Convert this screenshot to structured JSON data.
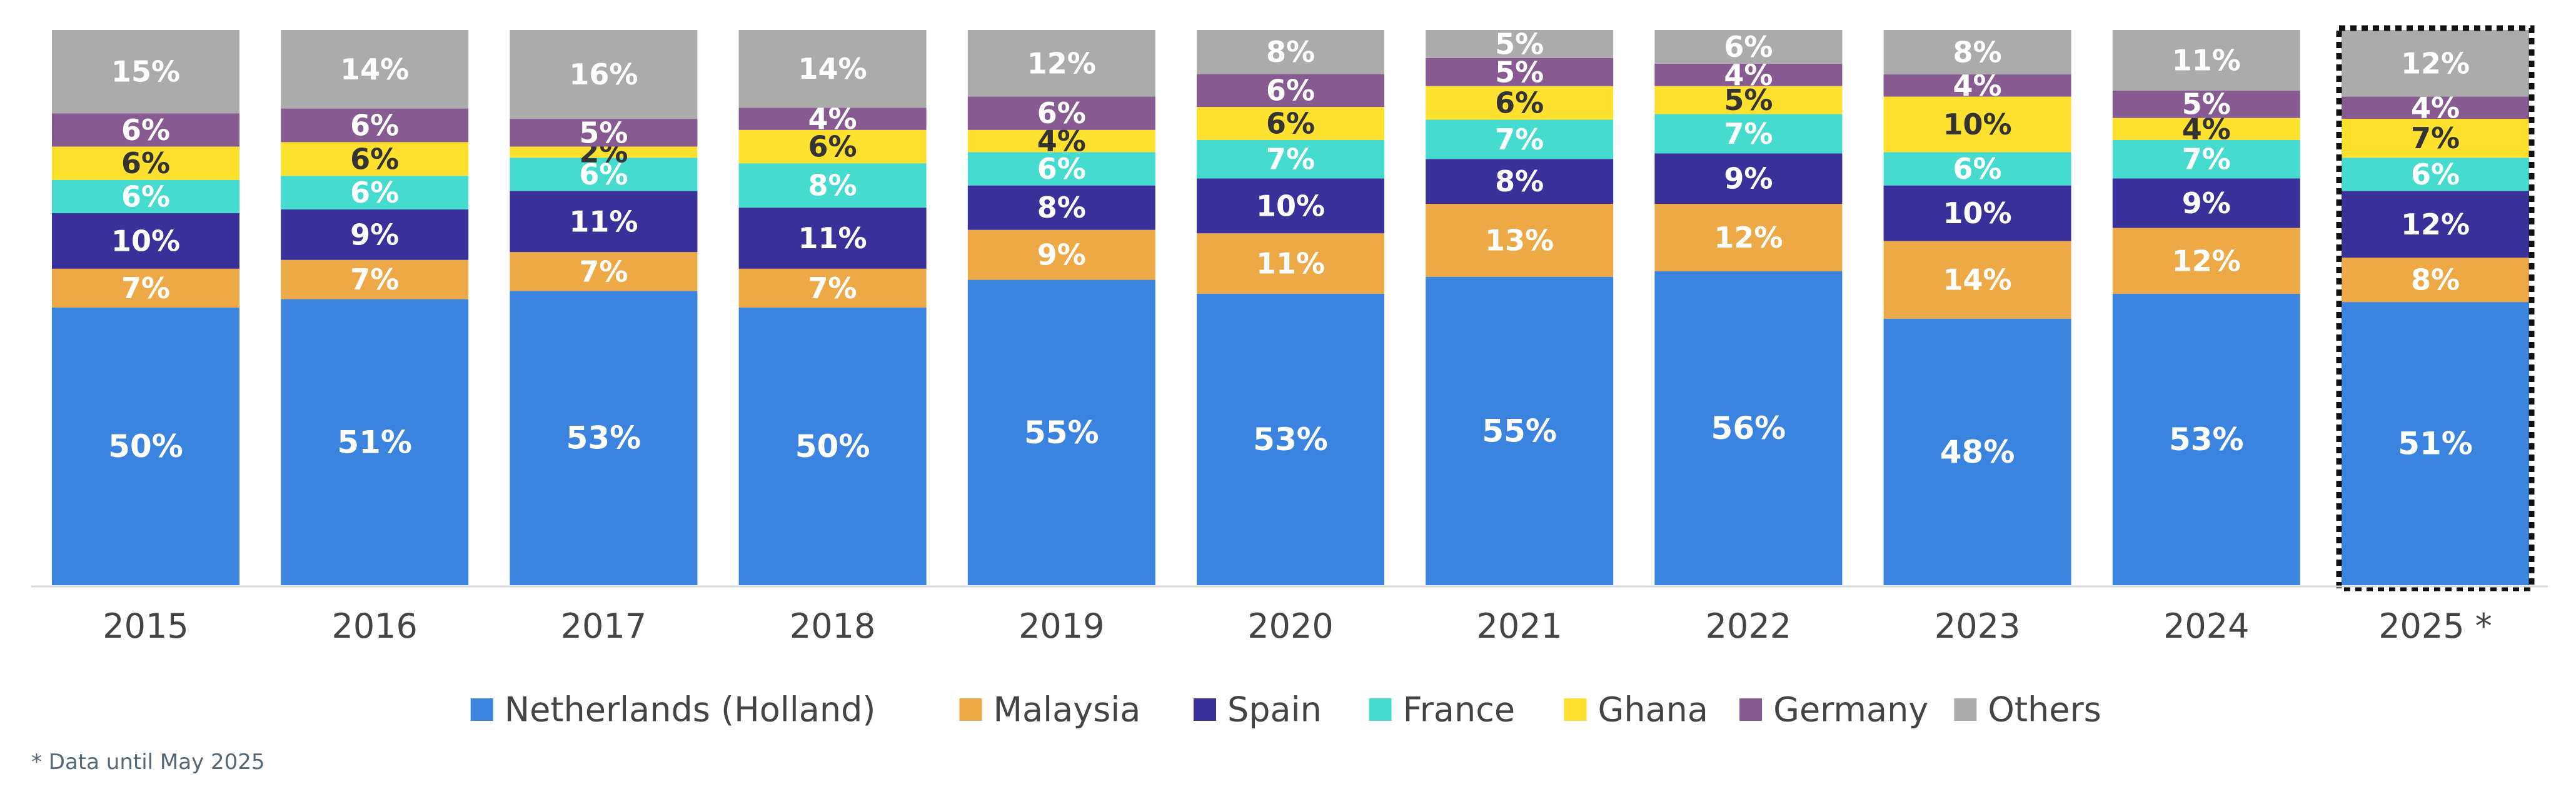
{
  "chart_data": {
    "type": "bar",
    "stacked": true,
    "normalized": true,
    "title": "",
    "xlabel": "",
    "ylabel": "",
    "ylim": [
      0,
      100
    ],
    "categories": [
      "2015",
      "2016",
      "2017",
      "2018",
      "2019",
      "2020",
      "2021",
      "2022",
      "2023",
      "2024",
      "2025 *"
    ],
    "highlighted_category": "2025 *",
    "series": [
      {
        "name": "Netherlands (Holland)",
        "color": "#3A84E0",
        "label_color": "#ffffff",
        "values": [
          50,
          51,
          53,
          50,
          55,
          53,
          55,
          56,
          48,
          53,
          51
        ]
      },
      {
        "name": "Malaysia",
        "color": "#EDA945",
        "label_color": "#ffffff",
        "values": [
          7,
          7,
          7,
          7,
          9,
          11,
          13,
          12,
          14,
          12,
          8
        ]
      },
      {
        "name": "Spain",
        "color": "#39309A",
        "label_color": "#ffffff",
        "values": [
          10,
          9,
          11,
          11,
          8,
          10,
          8,
          9,
          10,
          9,
          12
        ]
      },
      {
        "name": "France",
        "color": "#45DCCF",
        "label_color": "#ffffff",
        "values": [
          6,
          6,
          6,
          8,
          6,
          7,
          7,
          7,
          6,
          7,
          6
        ]
      },
      {
        "name": "Ghana",
        "color": "#FEE02E",
        "label_color": "#333333",
        "values": [
          6,
          6,
          2,
          6,
          4,
          6,
          6,
          5,
          10,
          4,
          7
        ]
      },
      {
        "name": "Germany",
        "color": "#875A92",
        "label_color": "#ffffff",
        "values": [
          6,
          6,
          5,
          4,
          6,
          6,
          5,
          4,
          4,
          5,
          4
        ]
      },
      {
        "name": "Others",
        "color": "#ABABAB",
        "label_color": "#ffffff",
        "values": [
          15,
          14,
          16,
          14,
          12,
          8,
          5,
          6,
          8,
          11,
          12
        ]
      }
    ],
    "legend": {
      "position": "bottom"
    },
    "grid": false,
    "footnote": "* Data until May 2025"
  }
}
